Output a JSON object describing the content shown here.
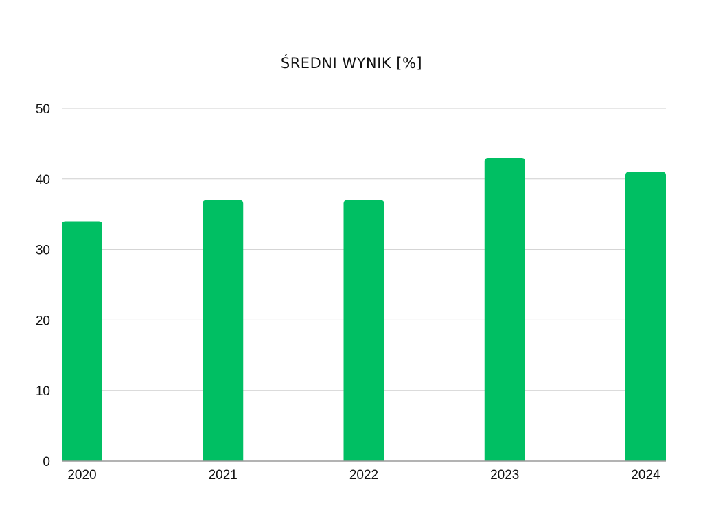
{
  "chart_data": {
    "type": "bar",
    "title": "ŚREDNI WYNIK [%]",
    "categories": [
      "2020",
      "2021",
      "2022",
      "2023",
      "2024"
    ],
    "values": [
      34,
      37,
      37,
      43,
      41
    ],
    "ylim": [
      0,
      50
    ],
    "yticks": [
      0,
      10,
      20,
      30,
      40,
      50
    ],
    "xlabel": "",
    "ylabel": "",
    "grid": true,
    "legend": "none",
    "bar_color": "#00BF63"
  }
}
